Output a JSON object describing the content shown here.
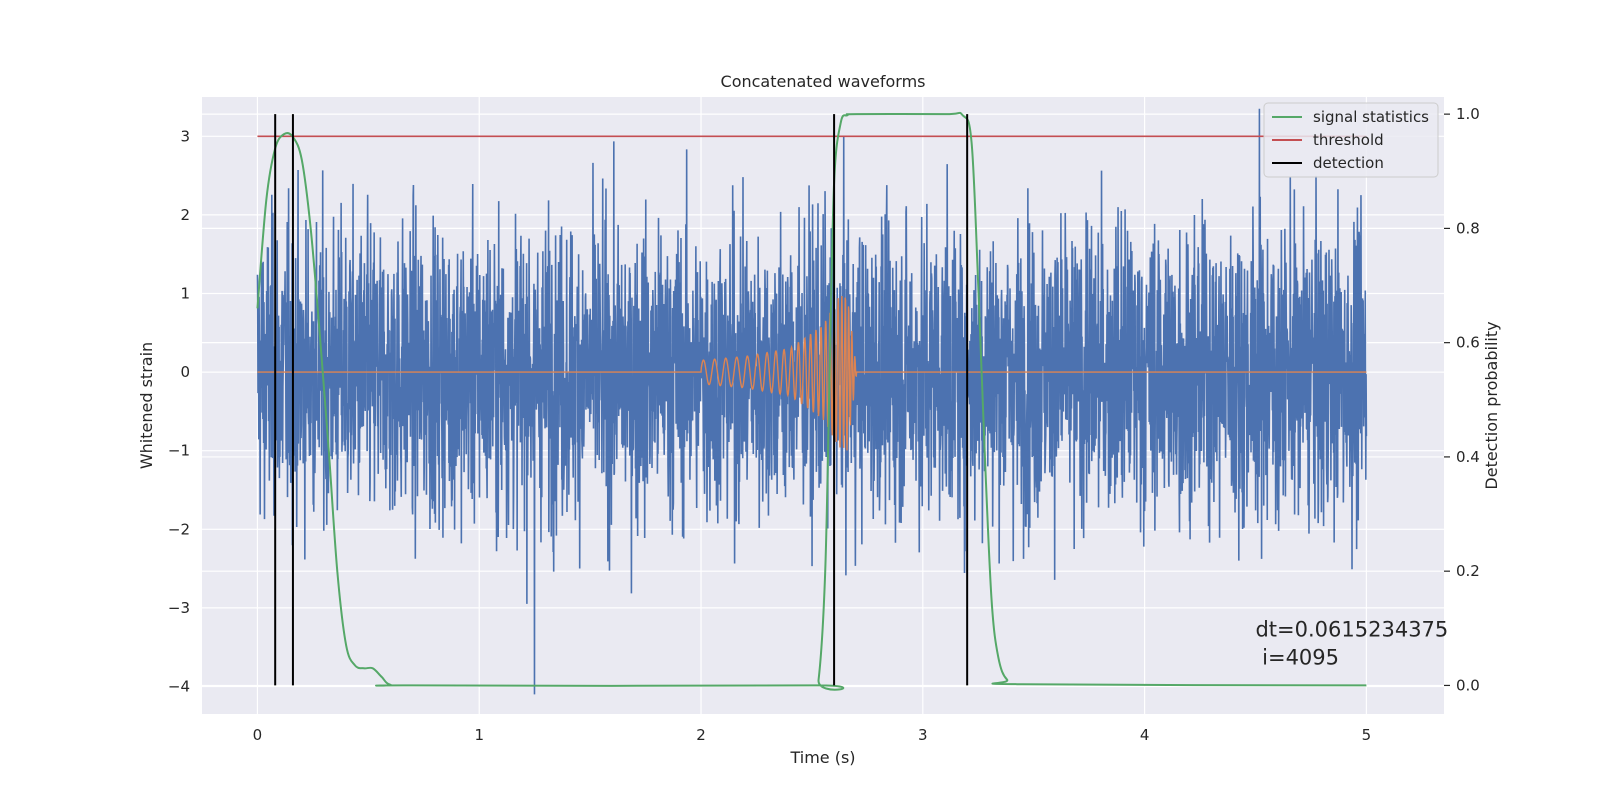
{
  "chart_data": {
    "type": "line",
    "title": "Concatenated waveforms",
    "xlabel": "Time (s)",
    "ylabel_left": "Whitened strain",
    "ylabel_right": "Detection probability",
    "xlim": [
      -0.25,
      5.35
    ],
    "ylim_left": [
      -4.35,
      3.5
    ],
    "ylim_right": [
      -0.05,
      1.03
    ],
    "xticks": [
      0,
      1,
      2,
      3,
      4,
      5
    ],
    "yticks_left": [
      -4,
      -3,
      -2,
      -1,
      0,
      1,
      2,
      3
    ],
    "yticks_right": [
      0.0,
      0.2,
      0.4,
      0.6,
      0.8,
      1.0
    ],
    "xtick_labels": [
      "0",
      "1",
      "2",
      "3",
      "4",
      "5"
    ],
    "ytick_labels_left": [
      "−4",
      "−3",
      "−2",
      "−1",
      "0",
      "1",
      "2",
      "3"
    ],
    "ytick_labels_right": [
      "0.0",
      "0.2",
      "0.4",
      "0.6",
      "0.8",
      "1.0"
    ],
    "grid": true,
    "legend_position": "top-right",
    "legend": [
      {
        "label": "signal statistics",
        "color": "#55a868"
      },
      {
        "label": "threshold",
        "color": "#c44e52"
      },
      {
        "label": "detection",
        "color": "#000000"
      }
    ],
    "series": [
      {
        "role": "whitened strain noise",
        "color": "#4c72b0",
        "axis": "left",
        "x_range": [
          0,
          5
        ],
        "typical_amplitude": 1.3,
        "max_value": 3.35,
        "min_value": -4.1
      },
      {
        "role": "injected waveform",
        "color": "#dd8452",
        "axis": "left",
        "x": [
          0,
          2.0,
          2.0,
          2.2,
          2.4,
          2.55,
          2.62,
          2.66,
          2.7,
          5
        ],
        "amplitude": [
          0,
          0,
          0.15,
          0.2,
          0.3,
          0.6,
          0.95,
          1.0,
          0.05,
          0
        ]
      },
      {
        "name": "signal statistics",
        "color": "#55a868",
        "axis": "right",
        "x": [
          0.0,
          0.04,
          0.08,
          0.12,
          0.16,
          0.2,
          0.24,
          0.28,
          0.32,
          0.36,
          0.4,
          0.44,
          0.48,
          0.52,
          0.56,
          0.6,
          0.7,
          2.5,
          2.53,
          2.56,
          2.58,
          2.6,
          2.63,
          2.66,
          2.7,
          3.1,
          3.18,
          3.22,
          3.25,
          3.28,
          3.31,
          3.34,
          3.38,
          3.45,
          5.0
        ],
        "y": [
          0.66,
          0.85,
          0.94,
          0.965,
          0.96,
          0.92,
          0.8,
          0.62,
          0.42,
          0.2,
          0.07,
          0.035,
          0.03,
          0.03,
          0.015,
          0.001,
          0.0,
          0.0,
          0.01,
          0.2,
          0.55,
          0.88,
          0.985,
          0.998,
          1.0,
          1.0,
          0.998,
          0.95,
          0.7,
          0.4,
          0.15,
          0.05,
          0.01,
          0.002,
          0.0
        ]
      },
      {
        "name": "threshold",
        "color": "#c44e52",
        "axis": "left",
        "x": [
          0,
          5
        ],
        "y": [
          3,
          3
        ]
      }
    ],
    "detections_x": [
      0.08,
      0.16,
      2.6,
      3.2
    ],
    "detection_y_range": [
      0.0,
      1.0
    ],
    "annotation": {
      "line1": "dt=0.0615234375",
      "line2": " i=4095",
      "x": 4.5,
      "y": -3.4
    }
  }
}
